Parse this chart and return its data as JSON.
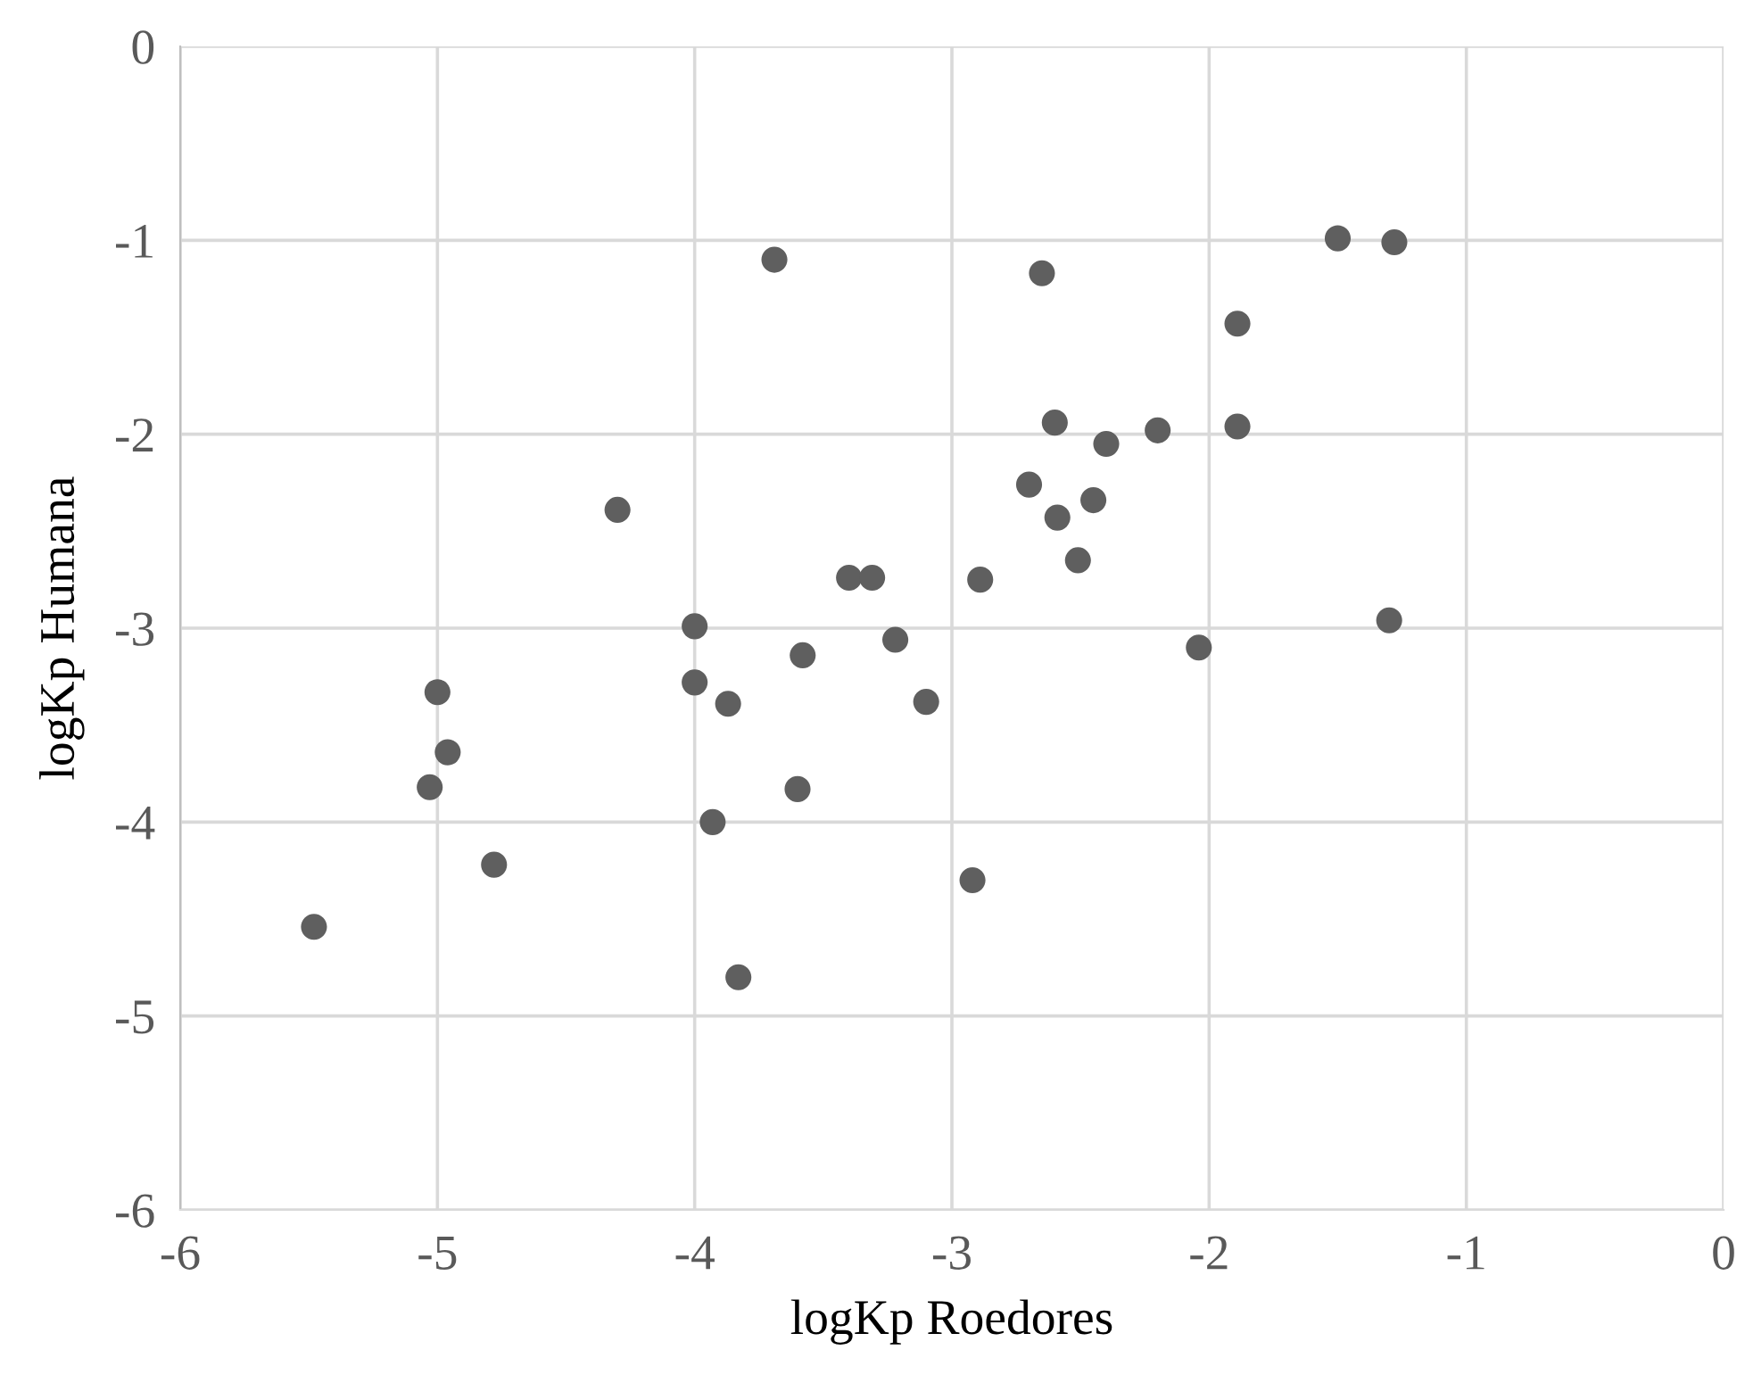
{
  "chart_data": {
    "type": "scatter",
    "xlabel": "logKp Roedores",
    "ylabel": "logKp Humana",
    "x": [
      -3.69,
      -4.3,
      -3.4,
      -3.31,
      -2.89,
      -4.0,
      -3.58,
      -3.22,
      -4.0,
      -3.87,
      -3.1,
      -5.0,
      -1.5,
      -1.28,
      -2.65,
      -1.89,
      -2.6,
      -2.4,
      -2.2,
      -1.89,
      -2.7,
      -2.45,
      -2.59,
      -2.51,
      -1.3,
      -2.04,
      -4.96,
      -5.03,
      -3.6,
      -3.93,
      -4.78,
      -2.92,
      -5.48,
      -3.83
    ],
    "values": [
      -1.1,
      -2.39,
      -2.74,
      -2.74,
      -2.75,
      -2.99,
      -3.14,
      -3.06,
      -3.28,
      -3.39,
      -3.38,
      -3.33,
      -0.99,
      -1.01,
      -1.17,
      -1.43,
      -1.94,
      -2.05,
      -1.98,
      -1.96,
      -2.26,
      -2.34,
      -2.43,
      -2.65,
      -2.96,
      -3.1,
      -3.64,
      -3.82,
      -3.83,
      -4.0,
      -4.22,
      -4.3,
      -4.54,
      -4.8
    ],
    "color": "#5f5f5f",
    "marker": "circle",
    "xlim": [
      -6,
      0
    ],
    "ylim": [
      -6,
      0
    ],
    "xticks": [
      -6,
      -5,
      -4,
      -3,
      -2,
      -1,
      0
    ],
    "yticks": [
      -6,
      -5,
      -4,
      -3,
      -2,
      -1,
      0
    ],
    "grid": true
  }
}
